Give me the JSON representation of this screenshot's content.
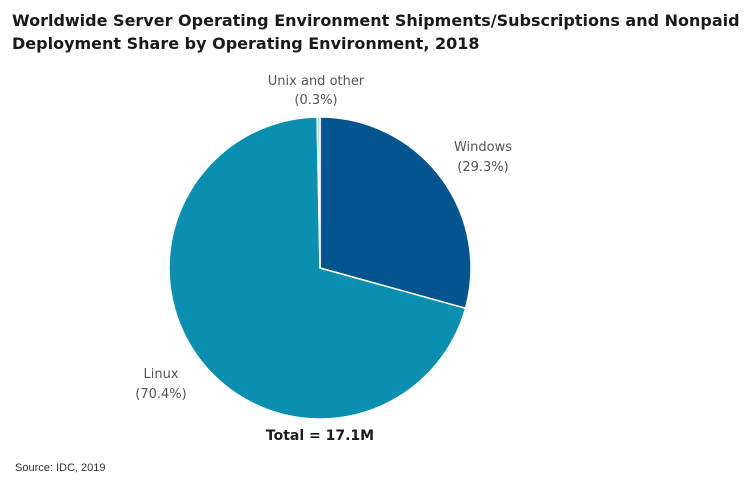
{
  "title": "Worldwide Server Operating Environment Shipments/Subscriptions and Nonpaid Deployment Share by Operating Environment, 2018",
  "total_label": "Total = 17.1M",
  "source": "Source: IDC, 2019",
  "chart_data": {
    "type": "pie",
    "title": "Worldwide Server Operating Environment Shipments/Subscriptions and Nonpaid Deployment Share by Operating Environment, 2018",
    "total": "Total = 17.1M",
    "slices": [
      {
        "label": "Windows",
        "value": 29.3,
        "value_label": "(29.3%)",
        "color": "#04558f"
      },
      {
        "label": "Linux",
        "value": 70.4,
        "value_label": "(70.4%)",
        "color": "#0a8fb0"
      },
      {
        "label": "Unix and other",
        "value": 0.3,
        "value_label": "(0.3%)",
        "color": "#9fd3b0"
      }
    ],
    "start": "12 o'clock",
    "direction": "clockwise"
  }
}
